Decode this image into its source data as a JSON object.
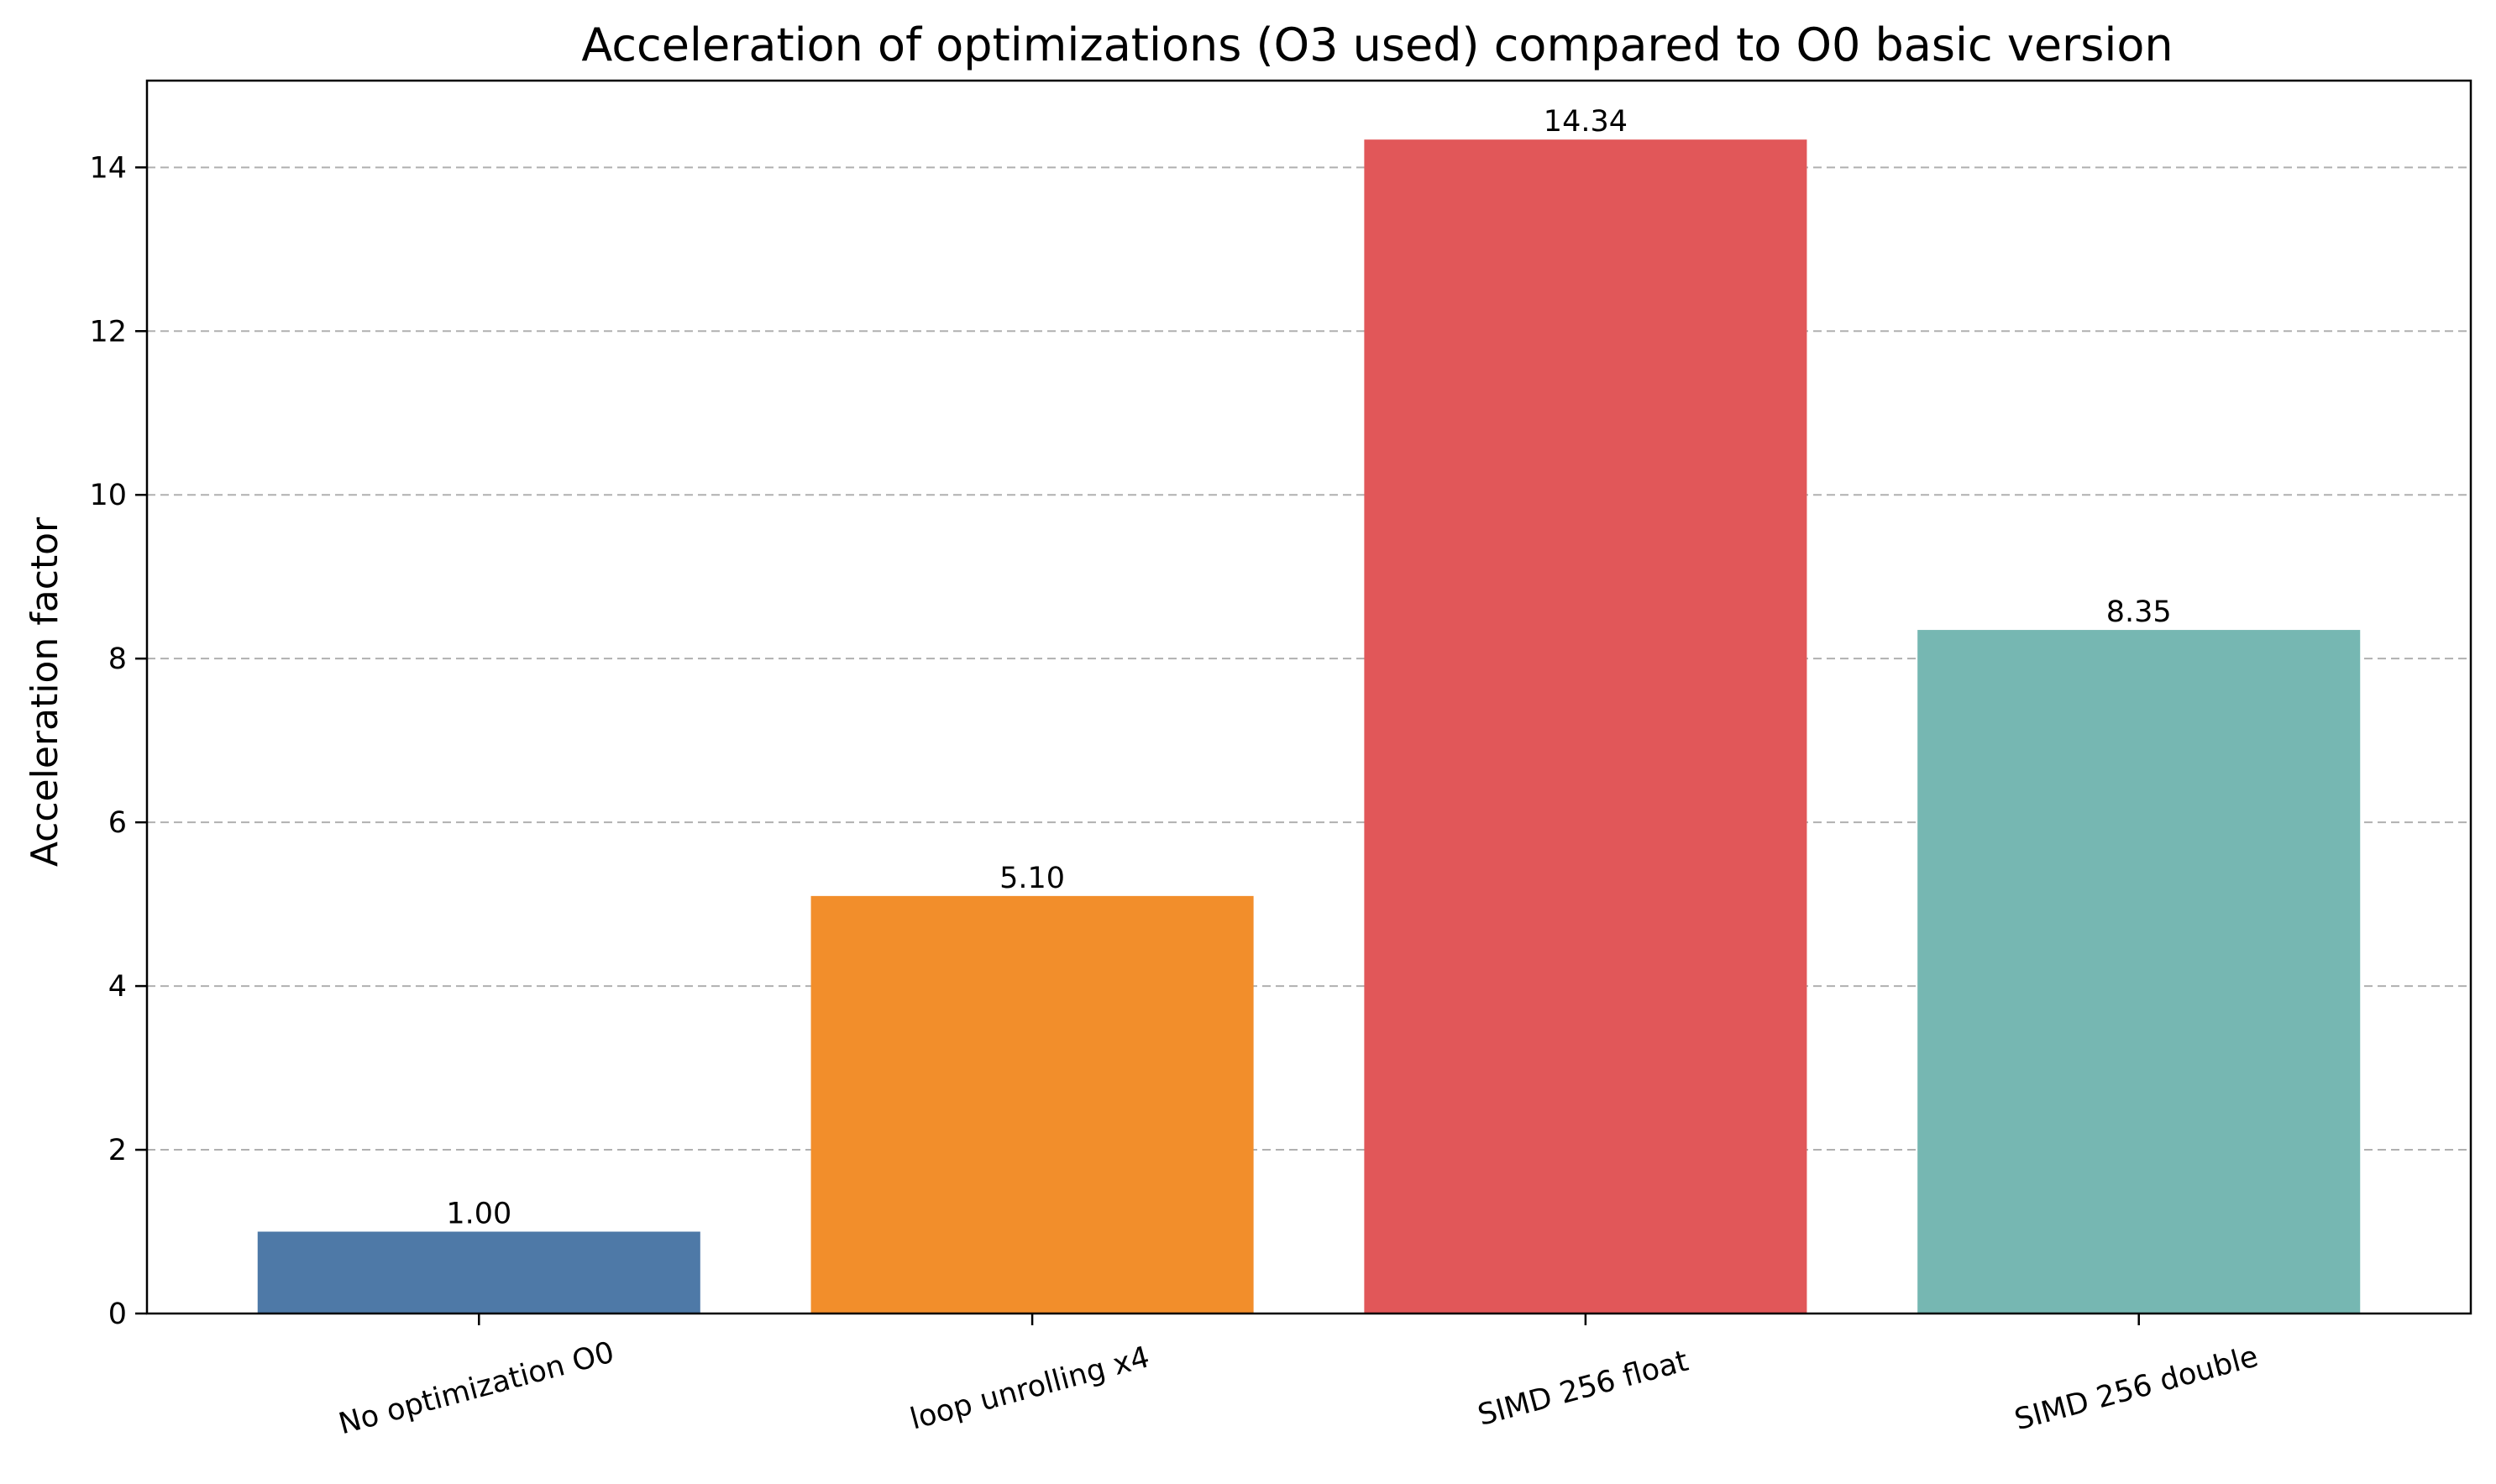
{
  "chart_data": {
    "type": "bar",
    "title": "Acceleration of optimizations (O3 used) compared to O0 basic version",
    "xlabel": "",
    "ylabel": "Acceleration factor",
    "categories": [
      "No optimization O0",
      "loop unrolling x4",
      "SIMD 256 float",
      "SIMD 256 double"
    ],
    "values": [
      1.0,
      5.1,
      14.34,
      8.35
    ],
    "value_labels": [
      "1.00",
      "5.10",
      "14.34",
      "8.35"
    ],
    "colors": [
      "#4e79a7",
      "#f28e2b",
      "#e15759",
      "#76b7b2"
    ],
    "ylim": [
      0,
      15.06
    ],
    "yticks": [
      0,
      2,
      4,
      6,
      8,
      10,
      12,
      14
    ],
    "ytick_labels": [
      "0",
      "2",
      "4",
      "6",
      "8",
      "10",
      "12",
      "14"
    ],
    "grid": "y-dashed",
    "xtick_rotation": 15,
    "legend": "none"
  }
}
